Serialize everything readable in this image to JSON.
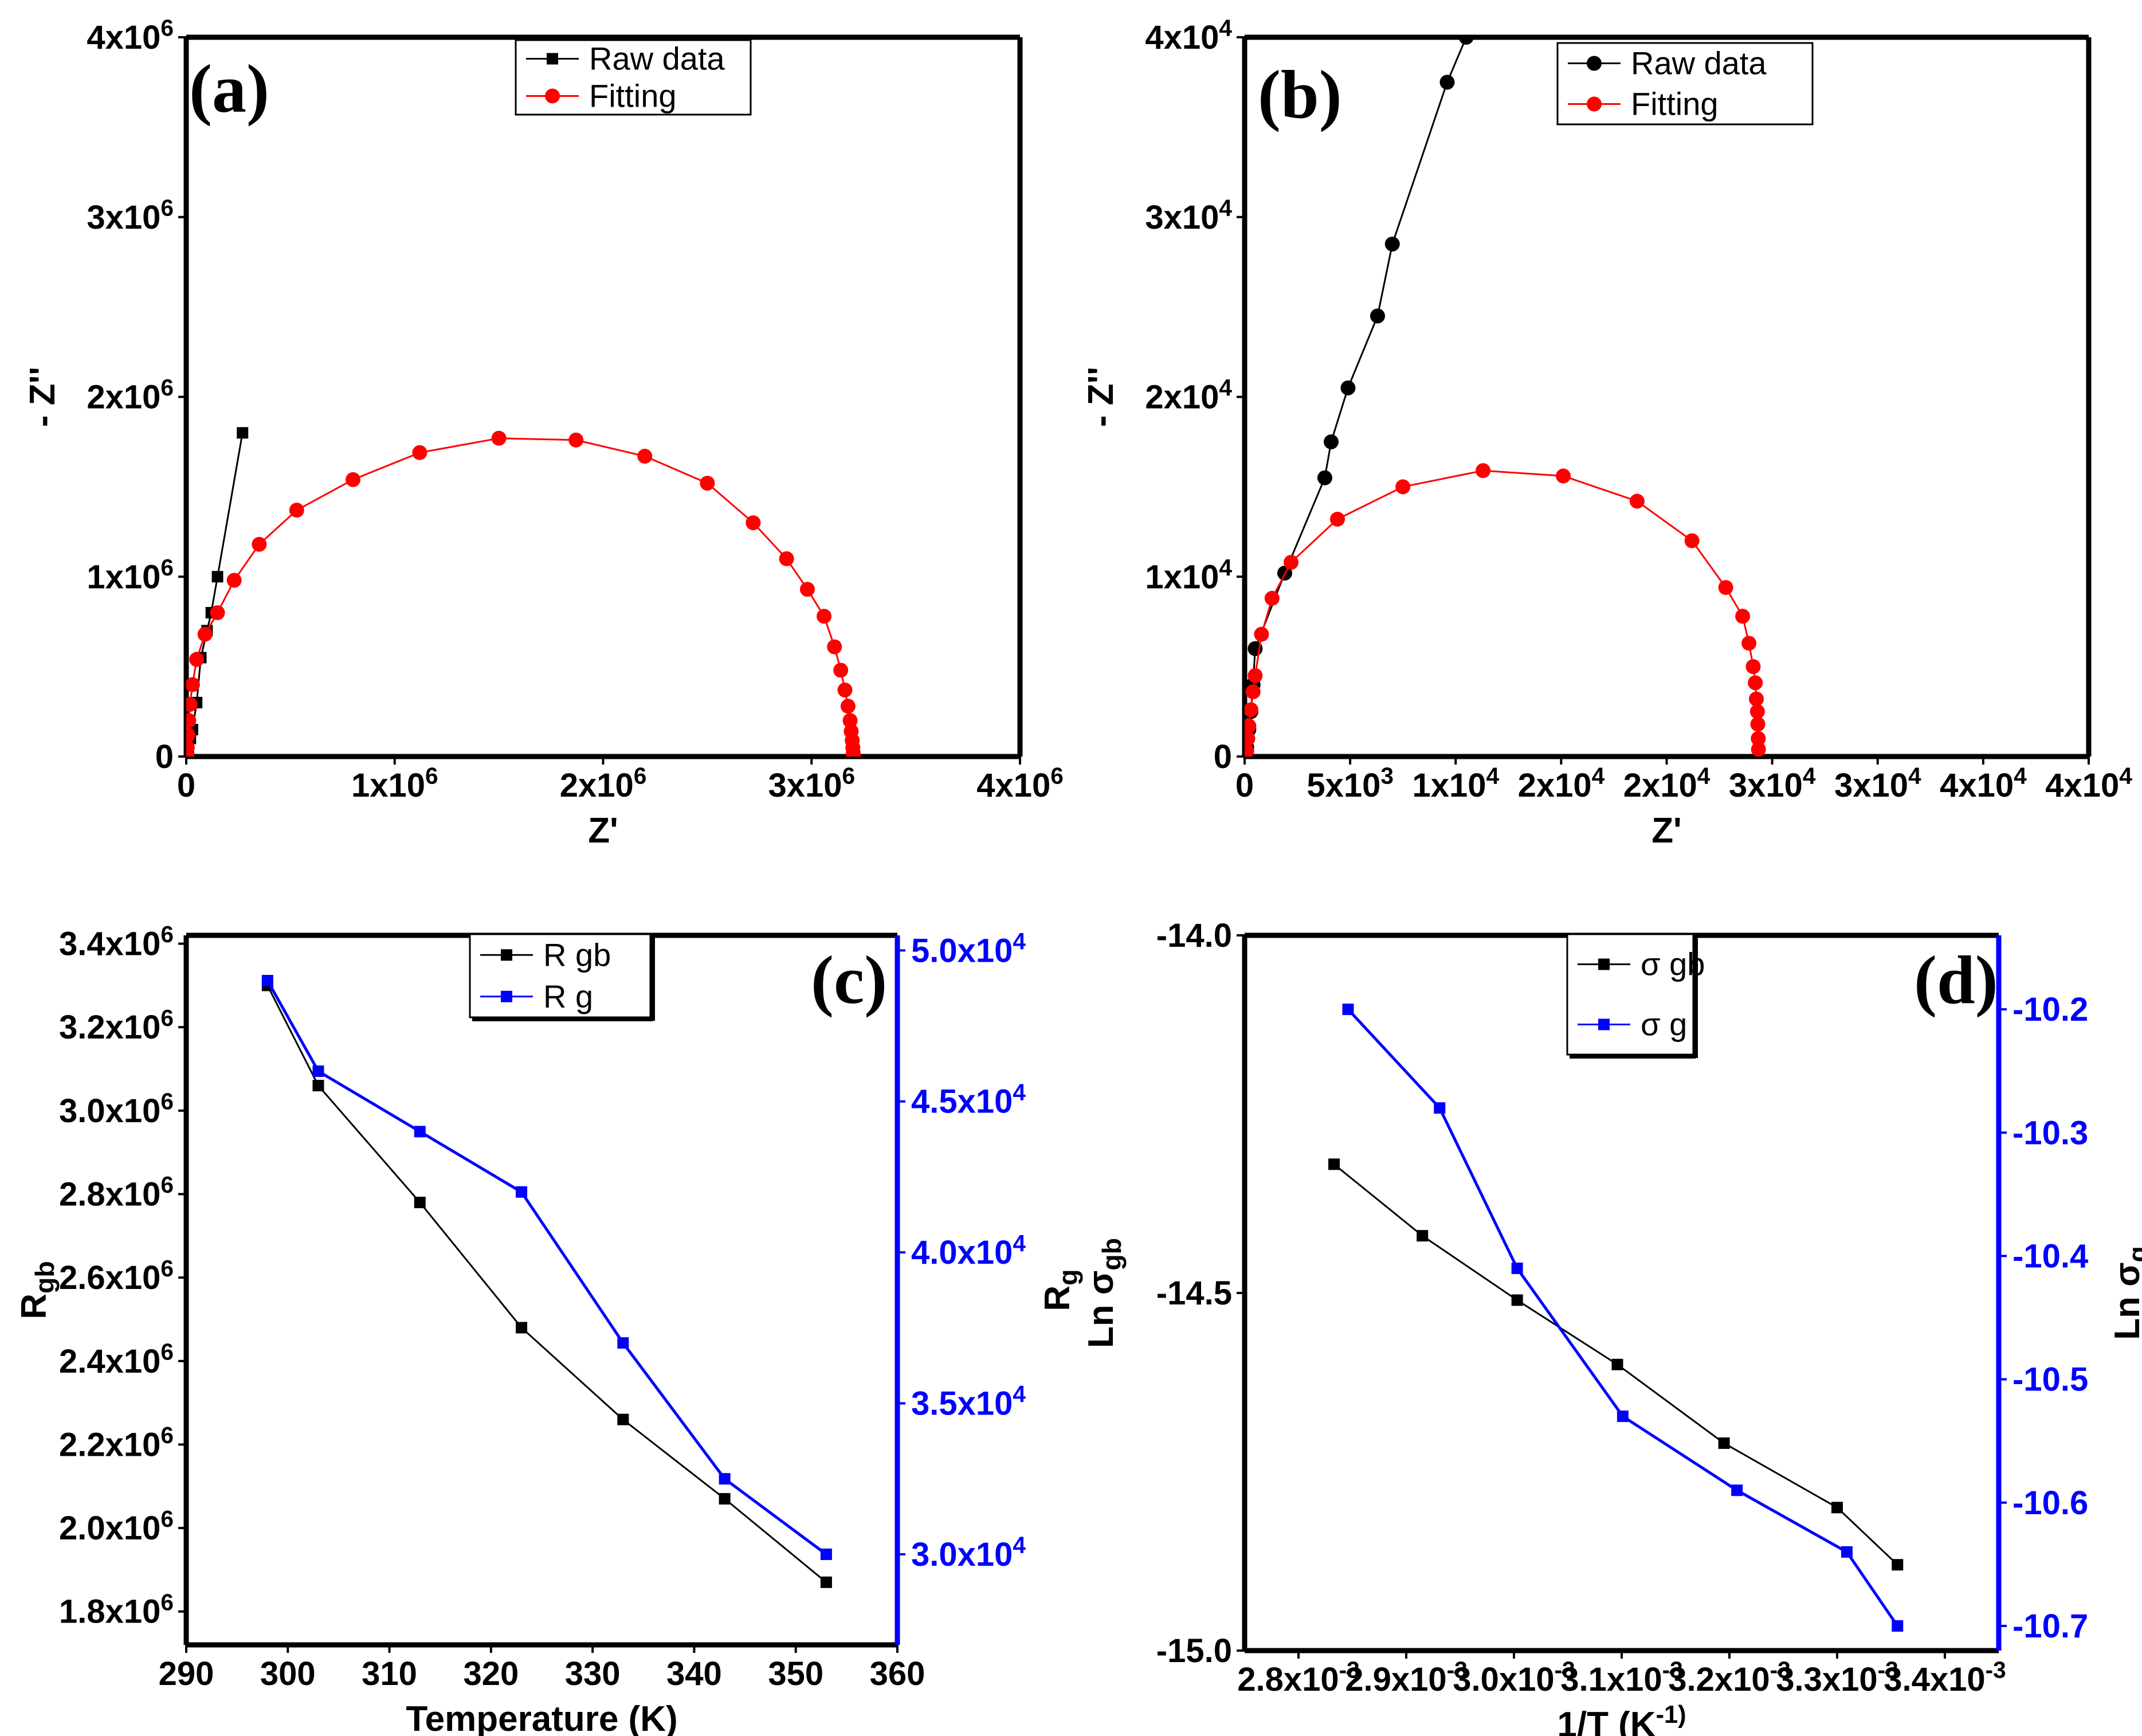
{
  "chart_data": [
    {
      "id": "a",
      "type": "scatter",
      "panel_label": "(a)",
      "xlabel": "Z'",
      "ylabel": "- Z''",
      "xlim": [
        0,
        4000000
      ],
      "ylim": [
        0,
        4000000
      ],
      "x_ticks": [
        0,
        1000000,
        2000000,
        3000000,
        4000000
      ],
      "x_tick_labels": [
        "0",
        "1x10^6",
        "2x10^6",
        "3x10^6",
        "4x10^6"
      ],
      "y_ticks": [
        0,
        1000000,
        2000000,
        3000000,
        4000000
      ],
      "y_tick_labels": [
        "0",
        "1x10^6",
        "2x10^6",
        "3x10^6",
        "4x10^6"
      ],
      "legend_position": "top-center",
      "series": [
        {
          "name": "Raw data",
          "color": "#000000",
          "marker": "square",
          "x": [
            10000,
            20000,
            30000,
            50000,
            70000,
            100000,
            120000,
            150000,
            270000
          ],
          "y": [
            40000,
            100000,
            150000,
            300000,
            550000,
            700000,
            800000,
            1000000,
            1800000
          ]
        },
        {
          "name": "Fitting",
          "color": "#ff0000",
          "marker": "circle",
          "x": [
            3000,
            5000,
            8000,
            12000,
            18000,
            30000,
            50000,
            90000,
            150000,
            230000,
            350000,
            530000,
            800000,
            1120000,
            1500000,
            1870000,
            2200000,
            2500000,
            2720000,
            2880000,
            2980000,
            3060000,
            3110000,
            3140000,
            3160000,
            3175000,
            3185000,
            3190000,
            3195000,
            3198000,
            3200000,
            3201000
          ],
          "y": [
            0,
            50000,
            120000,
            200000,
            290000,
            400000,
            540000,
            680000,
            800000,
            980000,
            1180000,
            1370000,
            1540000,
            1690000,
            1770000,
            1760000,
            1670000,
            1520000,
            1300000,
            1100000,
            930000,
            780000,
            610000,
            480000,
            370000,
            280000,
            200000,
            140000,
            90000,
            50000,
            20000,
            5000
          ]
        }
      ]
    },
    {
      "id": "b",
      "type": "scatter",
      "panel_label": "(b)",
      "xlabel": "Z'",
      "ylabel": "- Z''",
      "xlim": [
        0,
        40000
      ],
      "ylim": [
        0,
        40000
      ],
      "x_ticks": [
        0,
        5000,
        10000,
        15000,
        20000,
        25000,
        30000,
        35000,
        40000
      ],
      "x_tick_labels": [
        "0",
        "5x10^3",
        "1x10^4",
        "2x10^4",
        "2x10^4",
        "3x10^4",
        "3x10^4",
        "4x10^4",
        "4x10^4"
      ],
      "y_ticks": [
        0,
        10000,
        20000,
        30000,
        40000
      ],
      "y_tick_labels": [
        "0",
        "1x10^4",
        "2x10^4",
        "3x10^4",
        "4x10^4"
      ],
      "legend_position": "top-right",
      "series": [
        {
          "name": "Raw data",
          "color": "#000000",
          "marker": "circle",
          "x": [
            100,
            200,
            300,
            400,
            500,
            1900,
            3800,
            4100,
            4900,
            6300,
            7000,
            9600,
            10500
          ],
          "y": [
            500,
            1500,
            2500,
            4000,
            6000,
            10200,
            15500,
            17500,
            20500,
            24500,
            28500,
            37500,
            40000
          ],
          "line_extends_beyond": true
        },
        {
          "name": "Fitting",
          "color": "#ff0000",
          "marker": "circle",
          "x": [
            100,
            150,
            200,
            300,
            400,
            500,
            800,
            1300,
            2200,
            4400,
            7500,
            11300,
            15100,
            18600,
            21200,
            22800,
            23600,
            23900,
            24100,
            24200,
            24250,
            24300,
            24320,
            24340,
            24350
          ],
          "y": [
            300,
            1000,
            1700,
            2600,
            3600,
            4500,
            6800,
            8800,
            10800,
            13200,
            15000,
            15900,
            15600,
            14200,
            12000,
            9400,
            7800,
            6300,
            5000,
            4100,
            3200,
            2500,
            1800,
            1000,
            400
          ]
        }
      ]
    },
    {
      "id": "c",
      "type": "line",
      "panel_label": "(c)",
      "xlabel": "Temperature (K)",
      "ylabel": "R_gb",
      "ylabel_right": "R_g",
      "xlim": [
        290,
        360
      ],
      "ylim": [
        1720000,
        3420000
      ],
      "ylim_right": [
        27000,
        50500
      ],
      "x_ticks": [
        290,
        300,
        310,
        320,
        330,
        340,
        350,
        360
      ],
      "x_tick_labels": [
        "290",
        "300",
        "310",
        "320",
        "330",
        "340",
        "350",
        "360"
      ],
      "y_ticks": [
        1800000,
        2000000,
        2200000,
        2400000,
        2600000,
        2800000,
        3000000,
        3200000,
        3400000
      ],
      "y_tick_labels": [
        "1.8x10^6",
        "2.0x10^6",
        "2.2x10^6",
        "2.4x10^6",
        "2.6x10^6",
        "2.8x10^6",
        "3.0x10^6",
        "3.2x10^6",
        "3.4x10^6"
      ],
      "y_ticks_right": [
        30000,
        35000,
        40000,
        45000,
        50000
      ],
      "y_tick_labels_right": [
        "3.0x10^4",
        "3.5x10^4",
        "4.0x10^4",
        "4.5x10^4",
        "5.0x10^4"
      ],
      "legend_position": "top-center",
      "series": [
        {
          "name": "R gb",
          "color": "#000000",
          "axis": "left",
          "marker": "square",
          "x": [
            298,
            303,
            313,
            323,
            333,
            343,
            353
          ],
          "y": [
            3300000,
            3060000,
            2780000,
            2480000,
            2260000,
            2070000,
            1870000
          ]
        },
        {
          "name": "R g",
          "color": "#0000ff",
          "axis": "right",
          "marker": "square",
          "x": [
            298,
            303,
            313,
            323,
            333,
            343,
            353
          ],
          "y": [
            49000,
            46000,
            44000,
            42000,
            37000,
            32500,
            30000
          ]
        }
      ]
    },
    {
      "id": "d",
      "type": "line",
      "panel_label": "(d)",
      "xlabel": "1/T (K^-1)",
      "ylabel": "Ln σ_gb",
      "ylabel_right": "Ln σ_g",
      "xlim": [
        0.00275,
        0.00345
      ],
      "ylim": [
        -15.0,
        -14.0
      ],
      "ylim_right": [
        -10.72,
        -10.14
      ],
      "x_ticks": [
        0.0028,
        0.0029,
        0.003,
        0.0031,
        0.0032,
        0.0033,
        0.0034
      ],
      "x_tick_labels": [
        "2.8x10^-3",
        "2.9x10^-3",
        "3.0x10^-3",
        "3.1x10^-3",
        "3.2x10^-3",
        "3.3x10^-3",
        "3.4x10^-3"
      ],
      "y_ticks": [
        -15.0,
        -14.5,
        -14.0
      ],
      "y_tick_labels": [
        "-15.0",
        "-14.5",
        "-14.0"
      ],
      "y_ticks_right": [
        -10.7,
        -10.6,
        -10.5,
        -10.4,
        -10.3,
        -10.2
      ],
      "y_tick_labels_right": [
        "-10.7",
        "-10.6",
        "-10.5",
        "-10.4",
        "-10.3",
        "-10.2"
      ],
      "legend_position": "top-center",
      "series": [
        {
          "name": "σ gb",
          "color": "#000000",
          "axis": "left",
          "marker": "square",
          "x": [
            0.002833,
            0.002915,
            0.003003,
            0.003096,
            0.003195,
            0.0033,
            0.003356
          ],
          "y": [
            -14.32,
            -14.42,
            -14.51,
            -14.6,
            -14.71,
            -14.8,
            -14.88
          ]
        },
        {
          "name": "σ g",
          "color": "#0000ff",
          "axis": "right",
          "marker": "square",
          "x": [
            0.002846,
            0.002931,
            0.003003,
            0.003101,
            0.003207,
            0.003309,
            0.003356
          ],
          "y": [
            -10.2,
            -10.28,
            -10.41,
            -10.53,
            -10.59,
            -10.64,
            -10.7
          ]
        }
      ]
    }
  ]
}
